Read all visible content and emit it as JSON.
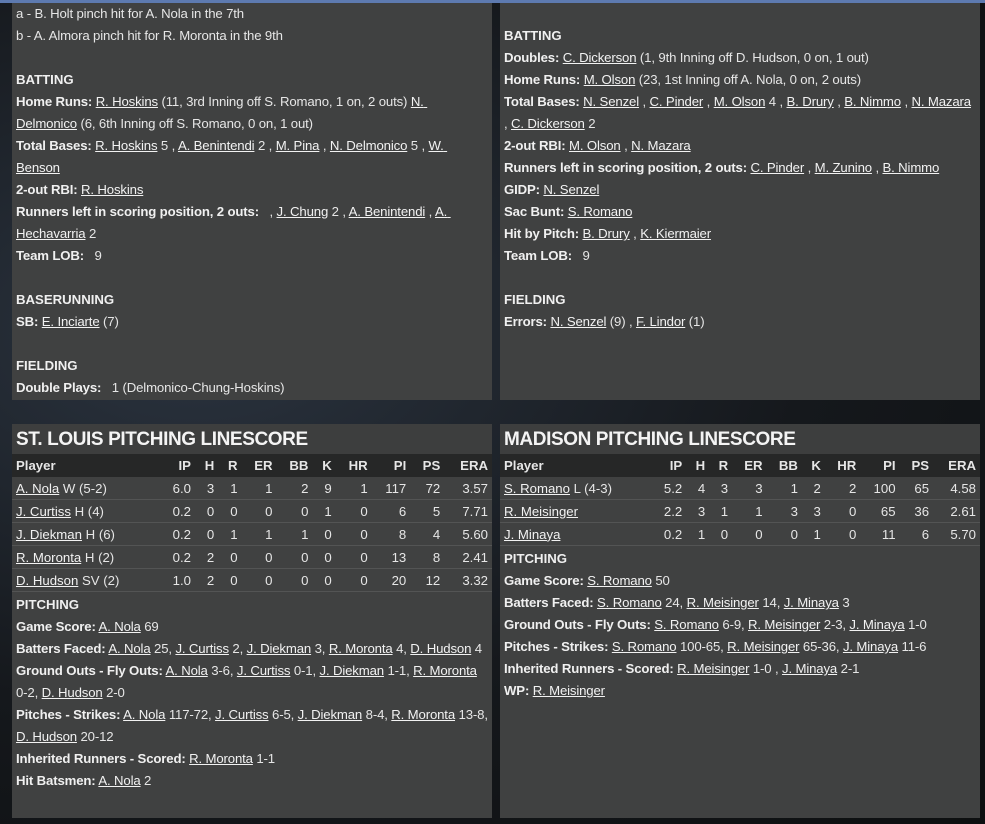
{
  "top_left": {
    "sections": [
      {
        "heading": "",
        "lines": [
          {
            "label": "",
            "parts": [
              {
                "t": "a - B. Holt pinch hit for A. Nola in the 7th"
              }
            ]
          },
          {
            "label": "",
            "parts": [
              {
                "t": "b - A. Almora pinch hit for R. Moronta in the 9th"
              }
            ]
          }
        ]
      },
      {
        "heading": "BATTING",
        "lines": [
          {
            "label": "Home Runs:",
            "parts": [
              {
                "t": "R. Hoskins",
                "u": true
              },
              {
                "t": " (11, 3rd Inning off S. Romano, 1 on, 2 outs) "
              },
              {
                "t": "N. Delmonico",
                "u": true
              },
              {
                "t": " (6, 6th Inning off S. Romano, 0 on, 1 out)"
              }
            ]
          },
          {
            "label": "Total Bases:",
            "parts": [
              {
                "t": "R. Hoskins",
                "u": true
              },
              {
                "t": " 5 , "
              },
              {
                "t": "A. Benintendi",
                "u": true
              },
              {
                "t": " 2 , "
              },
              {
                "t": "M. Pina",
                "u": true
              },
              {
                "t": " , "
              },
              {
                "t": "N. Delmonico",
                "u": true
              },
              {
                "t": " 5 , "
              },
              {
                "t": "W. Benson",
                "u": true
              }
            ]
          },
          {
            "label": "2-out RBI:",
            "parts": [
              {
                "t": "R. Hoskins",
                "u": true
              }
            ]
          },
          {
            "label": "Runners left in scoring position, 2 outs:",
            "parts": [
              {
                "t": "  , "
              },
              {
                "t": "J. Chung",
                "u": true
              },
              {
                "t": " 2 , "
              },
              {
                "t": "A. Benintendi",
                "u": true
              },
              {
                "t": " , "
              },
              {
                "t": "A. Hechavarria",
                "u": true
              },
              {
                "t": " 2"
              }
            ]
          },
          {
            "label": "Team LOB:",
            "parts": [
              {
                "t": "  9"
              }
            ]
          }
        ]
      },
      {
        "heading": "BASERUNNING",
        "lines": [
          {
            "label": "SB:",
            "parts": [
              {
                "t": "E. Inciarte",
                "u": true
              },
              {
                "t": " (7)"
              }
            ]
          }
        ]
      },
      {
        "heading": "FIELDING",
        "lines": [
          {
            "label": "Double Plays:",
            "parts": [
              {
                "t": "  1 (Delmonico-Chung-Hoskins)"
              }
            ]
          }
        ]
      }
    ]
  },
  "top_right": {
    "sections": [
      {
        "heading": "BATTING",
        "lines": [
          {
            "label": "Doubles:",
            "parts": [
              {
                "t": "C. Dickerson",
                "u": true
              },
              {
                "t": " (1, 9th Inning off D. Hudson, 0 on, 1 out)"
              }
            ]
          },
          {
            "label": "Home Runs:",
            "parts": [
              {
                "t": "M. Olson",
                "u": true
              },
              {
                "t": " (23, 1st Inning off A. Nola, 0 on, 2 outs)"
              }
            ]
          },
          {
            "label": "Total Bases:",
            "parts": [
              {
                "t": "N. Senzel",
                "u": true
              },
              {
                "t": " , "
              },
              {
                "t": "C. Pinder",
                "u": true
              },
              {
                "t": " , "
              },
              {
                "t": "M. Olson",
                "u": true
              },
              {
                "t": " 4 , "
              },
              {
                "t": "B. Drury",
                "u": true
              },
              {
                "t": " , "
              },
              {
                "t": "B. Nimmo",
                "u": true
              },
              {
                "t": " , "
              },
              {
                "t": "N. Mazara",
                "u": true
              },
              {
                "t": " , "
              },
              {
                "t": "C. Dickerson",
                "u": true
              },
              {
                "t": " 2"
              }
            ]
          },
          {
            "label": "2-out RBI:",
            "parts": [
              {
                "t": "M. Olson",
                "u": true
              },
              {
                "t": " , "
              },
              {
                "t": "N. Mazara",
                "u": true
              }
            ]
          },
          {
            "label": "Runners left in scoring position, 2 outs:",
            "parts": [
              {
                "t": "C. Pinder",
                "u": true
              },
              {
                "t": " , "
              },
              {
                "t": "M. Zunino",
                "u": true
              },
              {
                "t": " , "
              },
              {
                "t": "B. Nimmo",
                "u": true
              }
            ]
          },
          {
            "label": "GIDP:",
            "parts": [
              {
                "t": "N. Senzel",
                "u": true
              }
            ]
          },
          {
            "label": "Sac Bunt:",
            "parts": [
              {
                "t": "S. Romano",
                "u": true
              }
            ]
          },
          {
            "label": "Hit by Pitch:",
            "parts": [
              {
                "t": "B. Drury",
                "u": true
              },
              {
                "t": " , "
              },
              {
                "t": "K. Kiermaier",
                "u": true
              }
            ]
          },
          {
            "label": "Team LOB:",
            "parts": [
              {
                "t": "  9"
              }
            ]
          }
        ]
      },
      {
        "heading": "FIELDING",
        "lines": [
          {
            "label": "Errors:",
            "parts": [
              {
                "t": "N. Senzel",
                "u": true
              },
              {
                "t": " (9) , "
              },
              {
                "t": "F. Lindor",
                "u": true
              },
              {
                "t": " (1)"
              }
            ]
          }
        ]
      }
    ]
  },
  "bottom_left": {
    "title": "ST. LOUIS PITCHING LINESCORE",
    "columns": [
      "Player",
      "IP",
      "H",
      "R",
      "ER",
      "BB",
      "K",
      "HR",
      "PI",
      "PS",
      "ERA"
    ],
    "rows": [
      {
        "player": "A. Nola",
        "note": " W (5-2)",
        "stats": [
          "6.0",
          "3",
          "1",
          "1",
          "2",
          "9",
          "1",
          "117",
          "72",
          "3.57"
        ]
      },
      {
        "player": "J. Curtiss",
        "note": " H (4)",
        "stats": [
          "0.2",
          "0",
          "0",
          "0",
          "0",
          "1",
          "0",
          "6",
          "5",
          "7.71"
        ]
      },
      {
        "player": "J. Diekman",
        "note": " H (6)",
        "stats": [
          "0.2",
          "0",
          "1",
          "1",
          "1",
          "0",
          "0",
          "8",
          "4",
          "5.60"
        ]
      },
      {
        "player": "R. Moronta",
        "note": " H (2)",
        "stats": [
          "0.2",
          "2",
          "0",
          "0",
          "0",
          "0",
          "0",
          "13",
          "8",
          "2.41"
        ]
      },
      {
        "player": "D. Hudson",
        "note": " SV (2)",
        "stats": [
          "1.0",
          "2",
          "0",
          "0",
          "0",
          "0",
          "0",
          "20",
          "12",
          "3.32"
        ]
      }
    ],
    "sections": [
      {
        "heading": "PITCHING",
        "lines": [
          {
            "label": "Game Score:",
            "parts": [
              {
                "t": "A. Nola",
                "u": true
              },
              {
                "t": " 69"
              }
            ]
          },
          {
            "label": "Batters Faced:",
            "parts": [
              {
                "t": "A. Nola",
                "u": true
              },
              {
                "t": " 25, "
              },
              {
                "t": "J. Curtiss",
                "u": true
              },
              {
                "t": " 2, "
              },
              {
                "t": "J. Diekman",
                "u": true
              },
              {
                "t": " 3, "
              },
              {
                "t": "R. Moronta",
                "u": true
              },
              {
                "t": " 4, "
              },
              {
                "t": "D. Hudson",
                "u": true
              },
              {
                "t": " 4"
              }
            ]
          },
          {
            "label": "Ground Outs - Fly Outs:",
            "parts": [
              {
                "t": "A. Nola",
                "u": true
              },
              {
                "t": " 3-6, "
              },
              {
                "t": "J. Curtiss",
                "u": true
              },
              {
                "t": " 0-1, "
              },
              {
                "t": "J. Diekman",
                "u": true
              },
              {
                "t": " 1-1, "
              },
              {
                "t": "R. Moronta",
                "u": true
              },
              {
                "t": " 0-2, "
              },
              {
                "t": "D. Hudson",
                "u": true
              },
              {
                "t": " 2-0"
              }
            ]
          },
          {
            "label": "Pitches - Strikes:",
            "parts": [
              {
                "t": "A. Nola",
                "u": true
              },
              {
                "t": " 117-72, "
              },
              {
                "t": "J. Curtiss",
                "u": true
              },
              {
                "t": " 6-5, "
              },
              {
                "t": "J. Diekman",
                "u": true
              },
              {
                "t": " 8-4, "
              },
              {
                "t": "R. Moronta",
                "u": true
              },
              {
                "t": " 13-8, "
              },
              {
                "t": "D. Hudson",
                "u": true
              },
              {
                "t": " 20-12"
              }
            ]
          },
          {
            "label": "Inherited Runners - Scored:",
            "parts": [
              {
                "t": "R. Moronta",
                "u": true
              },
              {
                "t": " 1-1"
              }
            ]
          },
          {
            "label": "Hit Batsmen:",
            "parts": [
              {
                "t": "A. Nola",
                "u": true
              },
              {
                "t": " 2"
              }
            ]
          }
        ]
      }
    ]
  },
  "bottom_right": {
    "title": "MADISON PITCHING LINESCORE",
    "columns": [
      "Player",
      "IP",
      "H",
      "R",
      "ER",
      "BB",
      "K",
      "HR",
      "PI",
      "PS",
      "ERA"
    ],
    "rows": [
      {
        "player": "S. Romano",
        "note": " L (4-3)",
        "stats": [
          "5.2",
          "4",
          "3",
          "3",
          "1",
          "2",
          "2",
          "100",
          "65",
          "4.58"
        ]
      },
      {
        "player": "R. Meisinger",
        "note": "",
        "stats": [
          "2.2",
          "3",
          "1",
          "1",
          "3",
          "3",
          "0",
          "65",
          "36",
          "2.61"
        ]
      },
      {
        "player": "J. Minaya",
        "note": "",
        "stats": [
          "0.2",
          "1",
          "0",
          "0",
          "0",
          "1",
          "0",
          "11",
          "6",
          "5.70"
        ]
      }
    ],
    "sections": [
      {
        "heading": "PITCHING",
        "lines": [
          {
            "label": "Game Score:",
            "parts": [
              {
                "t": "S. Romano",
                "u": true
              },
              {
                "t": " 50"
              }
            ]
          },
          {
            "label": "Batters Faced:",
            "parts": [
              {
                "t": "S. Romano",
                "u": true
              },
              {
                "t": " 24, "
              },
              {
                "t": "R. Meisinger",
                "u": true
              },
              {
                "t": " 14, "
              },
              {
                "t": "J. Minaya",
                "u": true
              },
              {
                "t": " 3"
              }
            ]
          },
          {
            "label": "Ground Outs - Fly Outs:",
            "parts": [
              {
                "t": "S. Romano",
                "u": true
              },
              {
                "t": " 6-9, "
              },
              {
                "t": "R. Meisinger",
                "u": true
              },
              {
                "t": " 2-3, "
              },
              {
                "t": "J. Minaya",
                "u": true
              },
              {
                "t": " 1-0"
              }
            ]
          },
          {
            "label": "Pitches - Strikes:",
            "parts": [
              {
                "t": "S. Romano",
                "u": true
              },
              {
                "t": " 100-65, "
              },
              {
                "t": "R. Meisinger",
                "u": true
              },
              {
                "t": " 65-36, "
              },
              {
                "t": "J. Minaya",
                "u": true
              },
              {
                "t": " 11-6"
              }
            ]
          },
          {
            "label": "Inherited Runners - Scored:",
            "parts": [
              {
                "t": "R. Meisinger",
                "u": true
              },
              {
                "t": " 1-0 , "
              },
              {
                "t": "J. Minaya",
                "u": true
              },
              {
                "t": " 2-1"
              }
            ]
          },
          {
            "label": "WP:",
            "parts": [
              {
                "t": "R. Meisinger",
                "u": true
              }
            ]
          }
        ]
      }
    ]
  }
}
